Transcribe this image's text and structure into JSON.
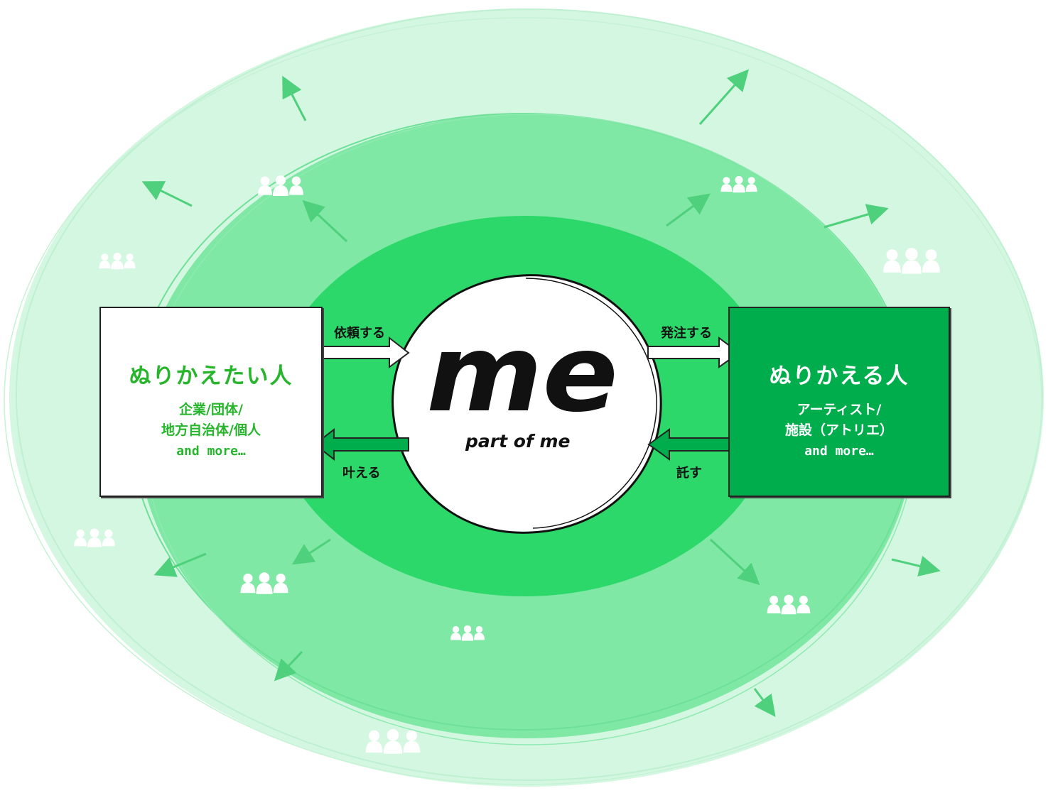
{
  "colors": {
    "outer_ring": "#d4f7e1",
    "middle_ring": "#7ee8a4",
    "inner_ring": "#2dd86a",
    "left_box_bg": "#ffffff",
    "right_box_bg": "#00ad4c",
    "left_text": "#26b52b",
    "right_text": "#ffffff",
    "arrow_stroke": "#2a8a4a"
  },
  "center": {
    "logo_text": "me",
    "subtitle": "part of me"
  },
  "left_box": {
    "title": "ぬりかえたい人",
    "lines": [
      "企業/団体/",
      "地方自治体/個人",
      "and more…"
    ],
    "icon": "businesswoman-icon"
  },
  "right_box": {
    "title": "ぬりかえる人",
    "lines": [
      "アーティスト/",
      "施設（アトリエ）",
      "and more…"
    ],
    "icon": "artist-with-brush-icon"
  },
  "arrows": {
    "irai": "依頼する",
    "kanaeru": "叶える",
    "hacchu": "発注する",
    "takusu": "託す"
  },
  "decor": {
    "group_icon": "people-group-icon",
    "radial_arrow_icon": "outward-arrow-icon"
  }
}
